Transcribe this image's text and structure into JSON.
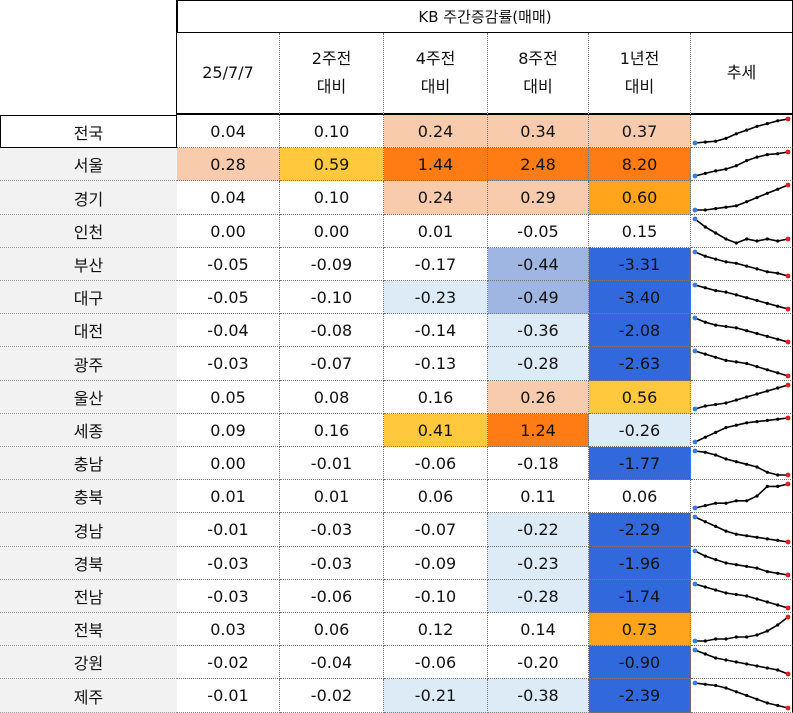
{
  "title": "KB 주간증감률(매매)",
  "headers": [
    {
      "line1": "25/7/7",
      "line2": ""
    },
    {
      "line1": "2주전",
      "line2": "대비"
    },
    {
      "line1": "4주전",
      "line2": "대비"
    },
    {
      "line1": "8주전",
      "line2": "대비"
    },
    {
      "line1": "1년전",
      "line2": "대비"
    },
    {
      "line1": "추세",
      "line2": ""
    }
  ],
  "colors": {
    "light_orange": "#f8cbad",
    "yellow": "#ffc83d",
    "orange": "#ff7c14",
    "gold": "#ffa41b",
    "pale_blue": "#ddebf7",
    "mid_blue": "#9fb6e2",
    "blue": "#3168dc",
    "region_bg": "#f2f2f2",
    "spark_line": "#000000",
    "spark_start": "#3a7bd5",
    "spark_end": "#e02020"
  },
  "chart_data": {
    "type": "table",
    "title": "KB 주간증감률(매매)",
    "columns": [
      "25/7/7",
      "2주전 대비",
      "4주전 대비",
      "8주전 대비",
      "1년전 대비",
      "추세"
    ],
    "rows": [
      {
        "region": "전국",
        "values": [
          "0.04",
          "0.10",
          "0.24",
          "0.34",
          "0.37"
        ],
        "fills": [
          "",
          "",
          "light_orange",
          "light_orange",
          "light_orange"
        ],
        "trend": [
          0.02,
          0.03,
          0.04,
          0.07,
          0.12,
          0.16,
          0.2,
          0.23,
          0.26,
          0.28
        ]
      },
      {
        "region": "서울",
        "values": [
          "0.28",
          "0.59",
          "1.44",
          "2.48",
          "8.20"
        ],
        "fills": [
          "light_orange",
          "yellow",
          "orange",
          "orange",
          "orange"
        ],
        "trend": [
          0.02,
          0.05,
          0.08,
          0.1,
          0.14,
          0.2,
          0.24,
          0.27,
          0.28,
          0.3
        ]
      },
      {
        "region": "경기",
        "values": [
          "0.04",
          "0.10",
          "0.24",
          "0.29",
          "0.60"
        ],
        "fills": [
          "",
          "",
          "light_orange",
          "light_orange",
          "gold"
        ],
        "trend": [
          0.0,
          0.0,
          0.01,
          0.02,
          0.03,
          0.06,
          0.09,
          0.12,
          0.15,
          0.18
        ]
      },
      {
        "region": "인천",
        "values": [
          "0.00",
          "0.00",
          "0.01",
          "-0.05",
          "0.15"
        ],
        "fills": [
          "",
          "",
          "",
          "",
          ""
        ],
        "trend": [
          0.1,
          0.06,
          0.03,
          0.0,
          -0.02,
          0.0,
          -0.01,
          0.0,
          -0.01,
          0.0
        ]
      },
      {
        "region": "부산",
        "values": [
          "-0.05",
          "-0.09",
          "-0.17",
          "-0.44",
          "-3.31"
        ],
        "fills": [
          "",
          "",
          "",
          "mid_blue",
          "blue"
        ],
        "trend": [
          0.0,
          -0.03,
          -0.05,
          -0.07,
          -0.08,
          -0.1,
          -0.12,
          -0.14,
          -0.15,
          -0.17
        ]
      },
      {
        "region": "대구",
        "values": [
          "-0.05",
          "-0.10",
          "-0.23",
          "-0.49",
          "-3.40"
        ],
        "fills": [
          "",
          "",
          "pale_blue",
          "mid_blue",
          "blue"
        ],
        "trend": [
          0.0,
          -0.02,
          -0.04,
          -0.05,
          -0.07,
          -0.09,
          -0.11,
          -0.13,
          -0.15,
          -0.17
        ]
      },
      {
        "region": "대전",
        "values": [
          "-0.04",
          "-0.08",
          "-0.14",
          "-0.36",
          "-2.08"
        ],
        "fills": [
          "",
          "",
          "",
          "pale_blue",
          "blue"
        ],
        "trend": [
          0.0,
          -0.03,
          -0.05,
          -0.06,
          -0.07,
          -0.09,
          -0.11,
          -0.13,
          -0.15,
          -0.17
        ]
      },
      {
        "region": "광주",
        "values": [
          "-0.03",
          "-0.07",
          "-0.13",
          "-0.28",
          "-2.63"
        ],
        "fills": [
          "",
          "",
          "",
          "pale_blue",
          "blue"
        ],
        "trend": [
          0.0,
          -0.02,
          -0.04,
          -0.06,
          -0.07,
          -0.08,
          -0.1,
          -0.12,
          -0.14,
          -0.16
        ]
      },
      {
        "region": "울산",
        "values": [
          "0.05",
          "0.08",
          "0.16",
          "0.26",
          "0.56"
        ],
        "fills": [
          "",
          "",
          "",
          "light_orange",
          "yellow"
        ],
        "trend": [
          0.0,
          0.02,
          0.03,
          0.04,
          0.06,
          0.08,
          0.1,
          0.12,
          0.14,
          0.16
        ]
      },
      {
        "region": "세종",
        "values": [
          "0.09",
          "0.16",
          "0.41",
          "1.24",
          "-0.26"
        ],
        "fills": [
          "",
          "",
          "yellow",
          "orange",
          "pale_blue"
        ],
        "trend": [
          0.0,
          0.04,
          0.08,
          0.12,
          0.14,
          0.16,
          0.17,
          0.18,
          0.19,
          0.2
        ]
      },
      {
        "region": "충남",
        "values": [
          "0.00",
          "-0.01",
          "-0.06",
          "-0.18",
          "-1.77"
        ],
        "fills": [
          "",
          "",
          "",
          "",
          "blue"
        ],
        "trend": [
          0.0,
          -0.01,
          -0.03,
          -0.06,
          -0.08,
          -0.1,
          -0.12,
          -0.16,
          -0.18,
          -0.18
        ]
      },
      {
        "region": "충북",
        "values": [
          "0.01",
          "0.01",
          "0.06",
          "0.11",
          "0.06"
        ],
        "fills": [
          "",
          "",
          "",
          "",
          ""
        ],
        "trend": [
          0.0,
          0.01,
          0.02,
          0.02,
          0.03,
          0.03,
          0.05,
          0.09,
          0.09,
          0.1
        ]
      },
      {
        "region": "경남",
        "values": [
          "-0.01",
          "-0.03",
          "-0.07",
          "-0.22",
          "-2.29"
        ],
        "fills": [
          "",
          "",
          "",
          "pale_blue",
          "blue"
        ],
        "trend": [
          0.0,
          -0.03,
          -0.06,
          -0.09,
          -0.11,
          -0.12,
          -0.13,
          -0.14,
          -0.15,
          -0.16
        ]
      },
      {
        "region": "경북",
        "values": [
          "-0.03",
          "-0.03",
          "-0.09",
          "-0.23",
          "-1.96"
        ],
        "fills": [
          "",
          "",
          "",
          "pale_blue",
          "blue"
        ],
        "trend": [
          0.0,
          -0.03,
          -0.05,
          -0.07,
          -0.08,
          -0.09,
          -0.1,
          -0.12,
          -0.13,
          -0.14
        ]
      },
      {
        "region": "전남",
        "values": [
          "-0.03",
          "-0.06",
          "-0.10",
          "-0.28",
          "-1.74"
        ],
        "fills": [
          "",
          "",
          "",
          "pale_blue",
          "blue"
        ],
        "trend": [
          0.0,
          -0.02,
          -0.04,
          -0.06,
          -0.07,
          -0.08,
          -0.1,
          -0.12,
          -0.14,
          -0.16
        ]
      },
      {
        "region": "전북",
        "values": [
          "0.03",
          "0.06",
          "0.12",
          "0.14",
          "0.73"
        ],
        "fills": [
          "",
          "",
          "",
          "",
          "gold"
        ],
        "trend": [
          0.0,
          0.0,
          0.01,
          0.01,
          0.02,
          0.02,
          0.03,
          0.05,
          0.08,
          0.12
        ]
      },
      {
        "region": "강원",
        "values": [
          "-0.02",
          "-0.04",
          "-0.06",
          "-0.20",
          "-0.90"
        ],
        "fills": [
          "",
          "",
          "",
          "",
          "blue"
        ],
        "trend": [
          0.0,
          -0.02,
          -0.04,
          -0.05,
          -0.06,
          -0.07,
          -0.08,
          -0.09,
          -0.1,
          -0.12
        ]
      },
      {
        "region": "제주",
        "values": [
          "-0.01",
          "-0.02",
          "-0.21",
          "-0.38",
          "-2.39"
        ],
        "fills": [
          "",
          "",
          "pale_blue",
          "pale_blue",
          "blue"
        ],
        "trend": [
          0.0,
          -0.01,
          -0.02,
          -0.04,
          -0.07,
          -0.1,
          -0.13,
          -0.16,
          -0.18,
          -0.2
        ]
      }
    ]
  }
}
